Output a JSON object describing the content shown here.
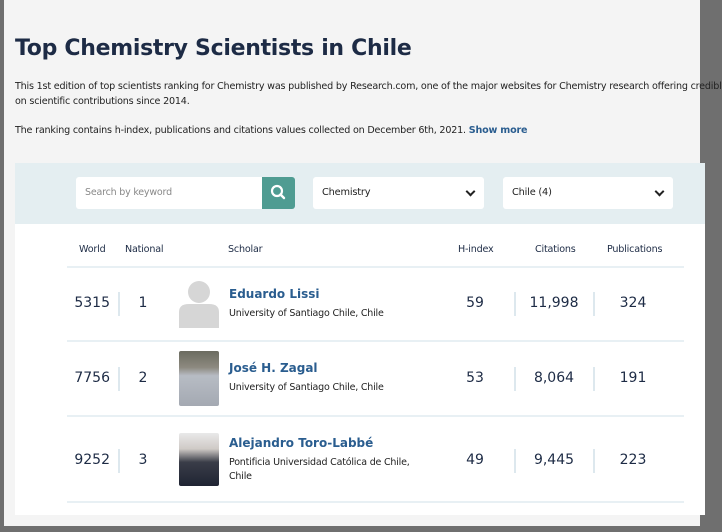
{
  "title": "Top Chemistry Scientists in Chile",
  "intro_line1": "This 1st edition of top scientists ranking for Chemistry was published by Research.com, one of the major websites for Chemistry research offering credibl",
  "intro_line2": "on scientific contributions since 2014.",
  "intro_line3": "The ranking contains h-index, publications and citations values collected on December 6th, 2021.",
  "show_more": "Show more",
  "filters": {
    "search_placeholder": "Search by keyword",
    "discipline": "Chemistry",
    "country": "Chile (4)"
  },
  "columns": {
    "world": "World",
    "national": "National",
    "scholar": "Scholar",
    "hindex": "H-index",
    "citations": "Citations",
    "publications": "Publications"
  },
  "accent": "#4f9c92",
  "rows": [
    {
      "world": "5315",
      "national": "1",
      "name": "Eduardo Lissi",
      "affiliation": "University of Santiago Chile, Chile",
      "hindex": "59",
      "citations": "11,998",
      "publications": "324"
    },
    {
      "world": "7756",
      "national": "2",
      "name": "José H. Zagal",
      "affiliation": "University of Santiago Chile, Chile",
      "hindex": "53",
      "citations": "8,064",
      "publications": "191"
    },
    {
      "world": "9252",
      "national": "3",
      "name": "Alejandro Toro-Labbé",
      "affiliation": "Pontificia Universidad Católica de Chile, Chile",
      "hindex": "49",
      "citations": "9,445",
      "publications": "223"
    }
  ]
}
